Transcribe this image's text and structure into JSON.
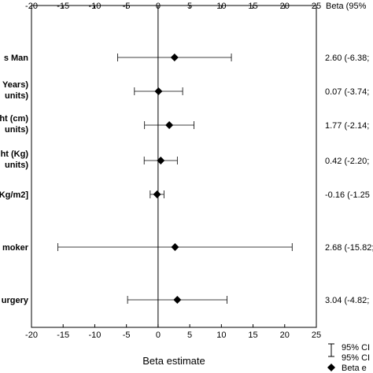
{
  "chart_data": {
    "type": "forest",
    "xlabel": "Beta estimate",
    "xlim": [
      -20,
      25
    ],
    "xticks": [
      "-20",
      "-15",
      "-10",
      "-5",
      "0",
      "5",
      "10",
      "15",
      "20",
      "25"
    ],
    "right_header": "Beta (95%",
    "reference_line": 0,
    "rows": [
      {
        "label_lines": [
          "s Man"
        ],
        "estimate": 2.6,
        "ci_low": -6.38,
        "ci_high": 11.58,
        "ci_text": "2.60 (-6.38;"
      },
      {
        "label_lines": [
          "Years)",
          "units)"
        ],
        "estimate": 0.07,
        "ci_low": -3.74,
        "ci_high": 3.88,
        "ci_text": "0.07 (-3.74;"
      },
      {
        "label_lines": [
          "ht (cm)",
          "units)"
        ],
        "estimate": 1.77,
        "ci_low": -2.14,
        "ci_high": 5.68,
        "ci_text": "1.77 (-2.14;"
      },
      {
        "label_lines": [
          "ht (Kg)",
          "units)"
        ],
        "estimate": 0.42,
        "ci_low": -2.2,
        "ci_high": 3.04,
        "ci_text": "0.42 (-2.20;"
      },
      {
        "label_lines": [
          "Kg/m2]"
        ],
        "estimate": -0.16,
        "ci_low": -1.25,
        "ci_high": 0.93,
        "ci_text": "-0.16 (-1.25"
      },
      {
        "label_lines": [
          "moker"
        ],
        "estimate": 2.68,
        "ci_low": -15.82,
        "ci_high": 21.18,
        "ci_text": "2.68 (-15.82;"
      },
      {
        "label_lines": [
          "urgery"
        ],
        "estimate": 3.04,
        "ci_low": -4.82,
        "ci_high": 10.9,
        "ci_text": "3.04 (-4.82;"
      }
    ],
    "legend": [
      {
        "marker": "ci-bar",
        "lines": [
          "95% CI",
          "95% CI"
        ]
      },
      {
        "marker": "diamond",
        "lines": [
          "Beta e"
        ]
      }
    ],
    "grid": false
  }
}
